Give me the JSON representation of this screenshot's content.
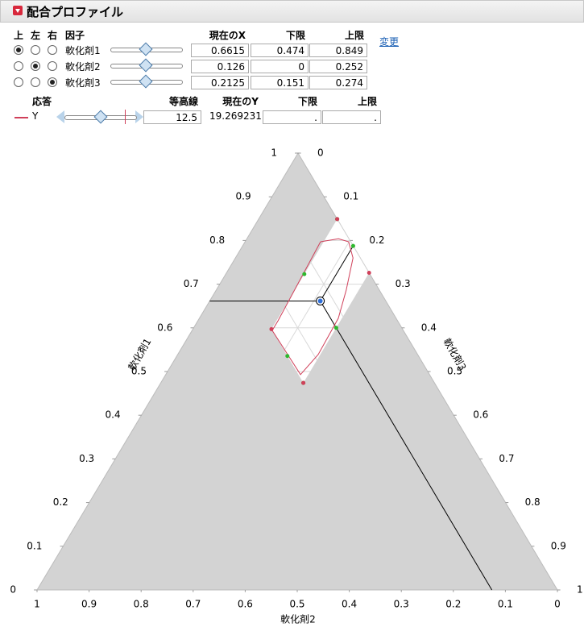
{
  "panel": {
    "title": "配合プロファイル",
    "factor_headers": [
      "上",
      "左",
      "右",
      "因子",
      "現在のX",
      "下限",
      "上限"
    ],
    "change_link": "変更",
    "factors": [
      {
        "name": "軟化剤1",
        "radio": [
          true,
          false,
          false
        ],
        "current": 0.6615,
        "lower": 0.474,
        "upper": 0.849
      },
      {
        "name": "軟化剤2",
        "radio": [
          false,
          true,
          false
        ],
        "current": 0.126,
        "lower": 0,
        "upper": 0.252
      },
      {
        "name": "軟化剤3",
        "radio": [
          false,
          false,
          true
        ],
        "current": 0.2125,
        "lower": 0.151,
        "upper": 0.274
      }
    ],
    "response_headers": [
      "応答",
      "等高線",
      "現在のY",
      "下限",
      "上限"
    ],
    "response": {
      "name": "Y",
      "color": "#d0405a",
      "contour": 12.5,
      "current": 19.269231,
      "lower": ".",
      "upper": "."
    }
  },
  "chart_data": {
    "type": "ternary",
    "infeasible_color": "#d3d3d3",
    "axes": [
      {
        "label": "軟化剤1",
        "ticks": [
          0,
          0.1,
          0.2,
          0.3,
          0.4,
          0.5,
          0.6,
          0.7,
          0.8,
          0.9,
          1
        ]
      },
      {
        "label": "軟化剤2",
        "ticks": [
          0,
          0.1,
          0.2,
          0.3,
          0.4,
          0.5,
          0.6,
          0.7,
          0.8,
          0.9,
          1
        ]
      },
      {
        "label": "軟化剤3",
        "ticks": [
          0,
          0.1,
          0.2,
          0.3,
          0.4,
          0.5,
          0.6,
          0.7,
          0.8,
          0.9,
          1
        ]
      }
    ],
    "contour": {
      "color": "#d0405a",
      "x1": [
        0.797,
        0.616,
        0.594,
        0.493,
        0.539,
        0.622,
        0.686,
        0.76,
        0.797,
        0.804,
        0.797
      ],
      "x2": [
        0.058,
        0.23,
        0.252,
        0.248,
        0.191,
        0.111,
        0.064,
        0.014,
        0.004,
        0.02,
        0.058
      ],
      "x3": [
        0.145,
        0.154,
        0.154,
        0.259,
        0.27,
        0.267,
        0.25,
        0.226,
        0.199,
        0.176,
        0.145
      ]
    }
  }
}
